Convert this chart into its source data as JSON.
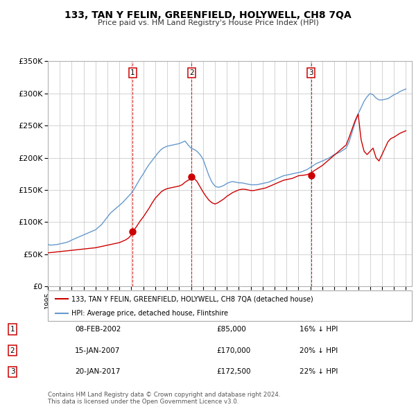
{
  "title": "133, TAN Y FELIN, GREENFIELD, HOLYWELL, CH8 7QA",
  "subtitle": "Price paid vs. HM Land Registry's House Price Index (HPI)",
  "background_color": "#ffffff",
  "plot_bg_color": "#ffffff",
  "grid_color": "#cccccc",
  "ylim": [
    0,
    350000
  ],
  "yticks": [
    0,
    50000,
    100000,
    150000,
    200000,
    250000,
    300000,
    350000
  ],
  "ytick_labels": [
    "£0",
    "£50K",
    "£100K",
    "£150K",
    "£200K",
    "£250K",
    "£300K",
    "£350K"
  ],
  "xmin": 1995.0,
  "xmax": 2025.5,
  "transactions": [
    {
      "date": 2002.1,
      "price": 85000,
      "label": "1"
    },
    {
      "date": 2007.04,
      "price": 170000,
      "label": "2"
    },
    {
      "date": 2017.05,
      "price": 172500,
      "label": "3"
    }
  ],
  "vlines": [
    2002.1,
    2007.04,
    2017.05
  ],
  "vline_color": "#cc0000",
  "hpi_color": "#6699cc",
  "price_color": "#cc0000",
  "legend_entries": [
    "133, TAN Y FELIN, GREENFIELD, HOLYWELL, CH8 7QA (detached house)",
    "HPI: Average price, detached house, Flintshire"
  ],
  "table_rows": [
    {
      "num": "1",
      "date": "08-FEB-2002",
      "price": "£85,000",
      "pct": "16% ↓ HPI"
    },
    {
      "num": "2",
      "date": "15-JAN-2007",
      "price": "£170,000",
      "pct": "20% ↓ HPI"
    },
    {
      "num": "3",
      "date": "20-JAN-2017",
      "price": "£172,500",
      "pct": "22% ↓ HPI"
    }
  ],
  "footnote": "Contains HM Land Registry data © Crown copyright and database right 2024.\nThis data is licensed under the Open Government Licence v3.0.",
  "hpi_data_x": [
    1995.0,
    1995.25,
    1995.5,
    1995.75,
    1996.0,
    1996.25,
    1996.5,
    1996.75,
    1997.0,
    1997.25,
    1997.5,
    1997.75,
    1998.0,
    1998.25,
    1998.5,
    1998.75,
    1999.0,
    1999.25,
    1999.5,
    1999.75,
    2000.0,
    2000.25,
    2000.5,
    2000.75,
    2001.0,
    2001.25,
    2001.5,
    2001.75,
    2002.0,
    2002.25,
    2002.5,
    2002.75,
    2003.0,
    2003.25,
    2003.5,
    2003.75,
    2004.0,
    2004.25,
    2004.5,
    2004.75,
    2005.0,
    2005.25,
    2005.5,
    2005.75,
    2006.0,
    2006.25,
    2006.5,
    2006.75,
    2007.0,
    2007.25,
    2007.5,
    2007.75,
    2008.0,
    2008.25,
    2008.5,
    2008.75,
    2009.0,
    2009.25,
    2009.5,
    2009.75,
    2010.0,
    2010.25,
    2010.5,
    2010.75,
    2011.0,
    2011.25,
    2011.5,
    2011.75,
    2012.0,
    2012.25,
    2012.5,
    2012.75,
    2013.0,
    2013.25,
    2013.5,
    2013.75,
    2014.0,
    2014.25,
    2014.5,
    2014.75,
    2015.0,
    2015.25,
    2015.5,
    2015.75,
    2016.0,
    2016.25,
    2016.5,
    2016.75,
    2017.0,
    2017.25,
    2017.5,
    2017.75,
    2018.0,
    2018.25,
    2018.5,
    2018.75,
    2019.0,
    2019.25,
    2019.5,
    2019.75,
    2020.0,
    2020.25,
    2020.5,
    2020.75,
    2021.0,
    2021.25,
    2021.5,
    2021.75,
    2022.0,
    2022.25,
    2022.5,
    2022.75,
    2023.0,
    2023.25,
    2023.5,
    2023.75,
    2024.0,
    2024.25,
    2024.5,
    2024.75,
    2025.0
  ],
  "hpi_data_y": [
    65000,
    64000,
    64500,
    65000,
    66000,
    67000,
    68000,
    69500,
    72000,
    74000,
    76000,
    78000,
    80000,
    82000,
    84000,
    86000,
    88000,
    92000,
    96000,
    102000,
    108000,
    114000,
    118000,
    122000,
    126000,
    130000,
    135000,
    140000,
    145000,
    152000,
    160000,
    168000,
    175000,
    183000,
    190000,
    196000,
    202000,
    208000,
    213000,
    216000,
    218000,
    219000,
    220000,
    221000,
    222000,
    224000,
    226000,
    220000,
    215000,
    213000,
    210000,
    205000,
    198000,
    185000,
    172000,
    162000,
    156000,
    154000,
    155000,
    157000,
    160000,
    162000,
    163000,
    162000,
    161000,
    161000,
    160000,
    159000,
    158000,
    158000,
    158000,
    159000,
    160000,
    161000,
    162000,
    164000,
    166000,
    168000,
    170000,
    172000,
    173000,
    174000,
    175000,
    176000,
    177000,
    178000,
    180000,
    182000,
    185000,
    188000,
    191000,
    193000,
    195000,
    197000,
    199000,
    202000,
    205000,
    207000,
    209000,
    212000,
    215000,
    225000,
    240000,
    255000,
    268000,
    278000,
    288000,
    295000,
    300000,
    298000,
    293000,
    290000,
    290000,
    291000,
    292000,
    295000,
    298000,
    300000,
    303000,
    305000,
    307000
  ],
  "price_data_x": [
    1995.0,
    1995.25,
    1995.5,
    1995.75,
    1996.0,
    1996.25,
    1996.5,
    1996.75,
    1997.0,
    1997.25,
    1997.5,
    1997.75,
    1998.0,
    1998.25,
    1998.5,
    1998.75,
    1999.0,
    1999.25,
    1999.5,
    1999.75,
    2000.0,
    2000.25,
    2000.5,
    2000.75,
    2001.0,
    2001.25,
    2001.5,
    2001.75,
    2002.0,
    2002.25,
    2002.5,
    2002.75,
    2003.0,
    2003.25,
    2003.5,
    2003.75,
    2004.0,
    2004.25,
    2004.5,
    2004.75,
    2005.0,
    2005.25,
    2005.5,
    2005.75,
    2006.0,
    2006.25,
    2006.5,
    2006.75,
    2007.0,
    2007.25,
    2007.5,
    2007.75,
    2008.0,
    2008.25,
    2008.5,
    2008.75,
    2009.0,
    2009.25,
    2009.5,
    2009.75,
    2010.0,
    2010.25,
    2010.5,
    2010.75,
    2011.0,
    2011.25,
    2011.5,
    2011.75,
    2012.0,
    2012.25,
    2012.5,
    2012.75,
    2013.0,
    2013.25,
    2013.5,
    2013.75,
    2014.0,
    2014.25,
    2014.5,
    2014.75,
    2015.0,
    2015.25,
    2015.5,
    2015.75,
    2016.0,
    2016.25,
    2016.5,
    2016.75,
    2017.0,
    2017.25,
    2017.5,
    2017.75,
    2018.0,
    2018.25,
    2018.5,
    2018.75,
    2019.0,
    2019.25,
    2019.5,
    2019.75,
    2020.0,
    2020.25,
    2020.5,
    2020.75,
    2021.0,
    2021.25,
    2021.5,
    2021.75,
    2022.0,
    2022.25,
    2022.5,
    2022.75,
    2023.0,
    2023.25,
    2023.5,
    2023.75,
    2024.0,
    2024.25,
    2024.5,
    2024.75,
    2025.0
  ],
  "price_data_y": [
    52000,
    52500,
    53000,
    53500,
    54000,
    54500,
    55000,
    55500,
    56000,
    56500,
    57000,
    57500,
    58000,
    58500,
    59000,
    59500,
    60000,
    61000,
    62000,
    63000,
    64000,
    65000,
    66000,
    67000,
    68000,
    70000,
    72000,
    75000,
    80000,
    88000,
    95000,
    102000,
    108000,
    115000,
    122000,
    130000,
    137000,
    142000,
    147000,
    150000,
    152000,
    153000,
    154000,
    155000,
    156000,
    158000,
    162000,
    165000,
    167000,
    168000,
    163000,
    155000,
    147000,
    140000,
    134000,
    130000,
    128000,
    130000,
    133000,
    136000,
    140000,
    143000,
    146000,
    148000,
    150000,
    151000,
    151000,
    150000,
    149000,
    149000,
    150000,
    151000,
    152000,
    153000,
    155000,
    157000,
    159000,
    161000,
    163000,
    165000,
    166000,
    167000,
    168000,
    170000,
    172000,
    172500,
    173000,
    174000,
    176000,
    179000,
    182000,
    185000,
    188000,
    192000,
    196000,
    200000,
    204000,
    208000,
    212000,
    216000,
    220000,
    232000,
    245000,
    258000,
    268000,
    228000,
    210000,
    205000,
    210000,
    215000,
    200000,
    195000,
    205000,
    215000,
    225000,
    230000,
    232000,
    235000,
    238000,
    240000,
    242000
  ]
}
